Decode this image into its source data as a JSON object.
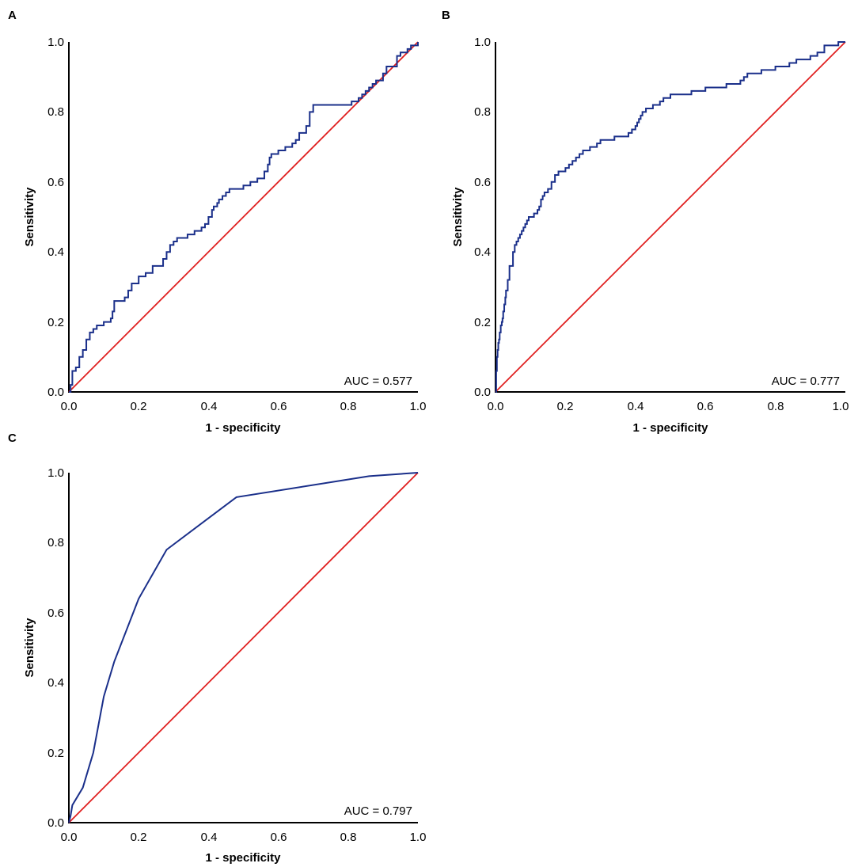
{
  "figure": {
    "colors": {
      "roc": "#1a2f8a",
      "reference": "#e02020",
      "axis": "#000000"
    }
  },
  "chart_data": [
    {
      "panel": "A",
      "type": "line",
      "title": "",
      "xlabel": "1 - specificity",
      "ylabel": "Sensitivity",
      "xlim": [
        0,
        1
      ],
      "ylim": [
        0,
        1
      ],
      "xticks": [
        "0.0",
        "0.2",
        "0.4",
        "0.6",
        "0.8",
        "1.0"
      ],
      "yticks": [
        "0.0",
        "0.2",
        "0.4",
        "0.6",
        "0.8",
        "1.0"
      ],
      "annotation": "AUC = 0.577",
      "step": true,
      "series": [
        {
          "name": "ROC",
          "x": [
            0,
            0.005,
            0.01,
            0.02,
            0.03,
            0.04,
            0.05,
            0.06,
            0.07,
            0.08,
            0.09,
            0.1,
            0.11,
            0.12,
            0.125,
            0.13,
            0.14,
            0.16,
            0.17,
            0.18,
            0.2,
            0.21,
            0.22,
            0.24,
            0.25,
            0.27,
            0.28,
            0.29,
            0.3,
            0.31,
            0.32,
            0.34,
            0.36,
            0.38,
            0.39,
            0.4,
            0.41,
            0.415,
            0.42,
            0.425,
            0.43,
            0.44,
            0.45,
            0.46,
            0.48,
            0.5,
            0.52,
            0.54,
            0.56,
            0.57,
            0.575,
            0.58,
            0.6,
            0.62,
            0.64,
            0.65,
            0.66,
            0.67,
            0.68,
            0.69,
            0.7,
            0.8,
            0.81,
            0.82,
            0.83,
            0.84,
            0.85,
            0.86,
            0.87,
            0.88,
            0.9,
            0.91,
            0.92,
            0.93,
            0.94,
            0.95,
            0.96,
            0.97,
            0.98,
            1.0
          ],
          "y": [
            0,
            0.02,
            0.06,
            0.07,
            0.1,
            0.12,
            0.15,
            0.17,
            0.18,
            0.19,
            0.19,
            0.2,
            0.2,
            0.21,
            0.23,
            0.26,
            0.26,
            0.27,
            0.29,
            0.31,
            0.33,
            0.33,
            0.34,
            0.36,
            0.36,
            0.38,
            0.4,
            0.42,
            0.43,
            0.44,
            0.44,
            0.45,
            0.46,
            0.47,
            0.48,
            0.5,
            0.52,
            0.53,
            0.53,
            0.54,
            0.55,
            0.56,
            0.57,
            0.58,
            0.58,
            0.59,
            0.6,
            0.61,
            0.63,
            0.65,
            0.67,
            0.68,
            0.69,
            0.7,
            0.71,
            0.72,
            0.74,
            0.74,
            0.76,
            0.8,
            0.82,
            0.82,
            0.83,
            0.83,
            0.84,
            0.85,
            0.86,
            0.87,
            0.88,
            0.89,
            0.91,
            0.93,
            0.93,
            0.93,
            0.96,
            0.97,
            0.97,
            0.98,
            0.99,
            1.0
          ]
        },
        {
          "name": "Reference",
          "x": [
            0,
            1
          ],
          "y": [
            0,
            1
          ]
        }
      ]
    },
    {
      "panel": "B",
      "type": "line",
      "title": "",
      "xlabel": "1 - specificity",
      "ylabel": "Sensitivity",
      "xlim": [
        0,
        1
      ],
      "ylim": [
        0,
        1
      ],
      "xticks": [
        "0.0",
        "0.2",
        "0.4",
        "0.6",
        "0.8",
        "1.0"
      ],
      "yticks": [
        "0.0",
        "0.2",
        "0.4",
        "0.6",
        "0.8",
        "1.0"
      ],
      "annotation": "AUC = 0.777",
      "step": true,
      "series": [
        {
          "name": "ROC",
          "x": [
            0,
            0.002,
            0.004,
            0.006,
            0.008,
            0.01,
            0.012,
            0.015,
            0.018,
            0.02,
            0.022,
            0.025,
            0.028,
            0.03,
            0.035,
            0.04,
            0.045,
            0.05,
            0.055,
            0.06,
            0.065,
            0.07,
            0.075,
            0.08,
            0.085,
            0.09,
            0.095,
            0.1,
            0.11,
            0.12,
            0.125,
            0.13,
            0.135,
            0.14,
            0.15,
            0.16,
            0.17,
            0.18,
            0.2,
            0.21,
            0.22,
            0.23,
            0.24,
            0.25,
            0.27,
            0.29,
            0.3,
            0.32,
            0.34,
            0.38,
            0.39,
            0.4,
            0.405,
            0.41,
            0.415,
            0.42,
            0.43,
            0.45,
            0.47,
            0.48,
            0.5,
            0.52,
            0.54,
            0.56,
            0.58,
            0.6,
            0.62,
            0.64,
            0.66,
            0.68,
            0.7,
            0.71,
            0.72,
            0.74,
            0.76,
            0.8,
            0.82,
            0.84,
            0.86,
            0.88,
            0.9,
            0.92,
            0.94,
            0.96,
            0.98,
            1.0
          ],
          "y": [
            0,
            0.06,
            0.1,
            0.12,
            0.14,
            0.15,
            0.17,
            0.19,
            0.2,
            0.21,
            0.23,
            0.25,
            0.27,
            0.29,
            0.32,
            0.36,
            0.36,
            0.4,
            0.42,
            0.43,
            0.44,
            0.45,
            0.46,
            0.47,
            0.48,
            0.49,
            0.5,
            0.5,
            0.51,
            0.52,
            0.53,
            0.55,
            0.56,
            0.57,
            0.58,
            0.6,
            0.62,
            0.63,
            0.64,
            0.65,
            0.66,
            0.67,
            0.68,
            0.69,
            0.7,
            0.71,
            0.72,
            0.72,
            0.73,
            0.74,
            0.75,
            0.76,
            0.77,
            0.78,
            0.79,
            0.8,
            0.81,
            0.82,
            0.83,
            0.84,
            0.85,
            0.85,
            0.85,
            0.86,
            0.86,
            0.87,
            0.87,
            0.87,
            0.88,
            0.88,
            0.89,
            0.9,
            0.91,
            0.91,
            0.92,
            0.93,
            0.93,
            0.94,
            0.95,
            0.95,
            0.96,
            0.97,
            0.99,
            0.99,
            1.0,
            1.0
          ]
        },
        {
          "name": "Reference",
          "x": [
            0,
            1
          ],
          "y": [
            0,
            1
          ]
        }
      ]
    },
    {
      "panel": "C",
      "type": "line",
      "title": "",
      "xlabel": "1 - specificity",
      "ylabel": "Sensitivity",
      "xlim": [
        0,
        1
      ],
      "ylim": [
        0,
        1
      ],
      "xticks": [
        "0.0",
        "0.2",
        "0.4",
        "0.6",
        "0.8",
        "1.0"
      ],
      "yticks": [
        "0.0",
        "0.2",
        "0.4",
        "0.6",
        "0.8",
        "1.0"
      ],
      "annotation": "AUC = 0.797",
      "step": false,
      "series": [
        {
          "name": "ROC",
          "x": [
            0,
            0.005,
            0.01,
            0.04,
            0.07,
            0.1,
            0.13,
            0.2,
            0.28,
            0.48,
            0.86,
            1.0
          ],
          "y": [
            0,
            0.02,
            0.05,
            0.1,
            0.2,
            0.36,
            0.46,
            0.64,
            0.78,
            0.93,
            0.99,
            1.0
          ]
        },
        {
          "name": "Reference",
          "x": [
            0,
            1
          ],
          "y": [
            0,
            1
          ]
        }
      ]
    }
  ]
}
